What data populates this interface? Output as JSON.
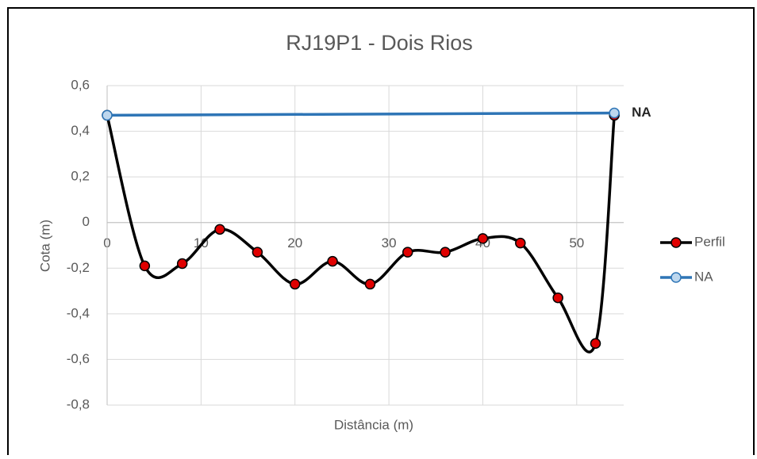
{
  "chart_data": {
    "type": "scatter_smooth",
    "title": "RJ19P1 - Dois Rios",
    "x_label": "Distância (m)",
    "y_label": "Cota (m)",
    "xlim": [
      0,
      55
    ],
    "xticks": [
      0,
      10,
      20,
      30,
      40,
      50
    ],
    "ylim": [
      -0.8,
      0.6
    ],
    "yticks": [
      {
        "value": -0.8,
        "label": "-0,8"
      },
      {
        "value": -0.6,
        "label": "-0,6"
      },
      {
        "value": -0.4,
        "label": "-0,4"
      },
      {
        "value": -0.2,
        "label": "-0,2"
      },
      0,
      {
        "value": 0.2,
        "label": "0,2"
      },
      {
        "value": 0.4,
        "label": "0,4"
      },
      {
        "value": 0.6,
        "label": "0,6"
      }
    ],
    "grid": true,
    "legend": "right",
    "series": [
      {
        "name": "Perfil",
        "color": "#000000",
        "marker_color": "#e00000",
        "x": [
          0,
          4,
          8,
          12,
          16,
          20,
          24,
          28,
          32,
          36,
          40,
          44,
          48,
          52,
          54
        ],
        "values": [
          0.47,
          -0.19,
          -0.18,
          -0.03,
          -0.13,
          -0.27,
          -0.17,
          -0.27,
          -0.13,
          -0.13,
          -0.07,
          -0.09,
          -0.33,
          -0.53,
          0.47
        ]
      },
      {
        "name": "NA",
        "color": "#2e75b6",
        "marker_color": "#bdd7ee",
        "x": [
          0,
          54
        ],
        "values": [
          0.47,
          0.48
        ]
      }
    ],
    "annotations": [
      "NA"
    ]
  }
}
